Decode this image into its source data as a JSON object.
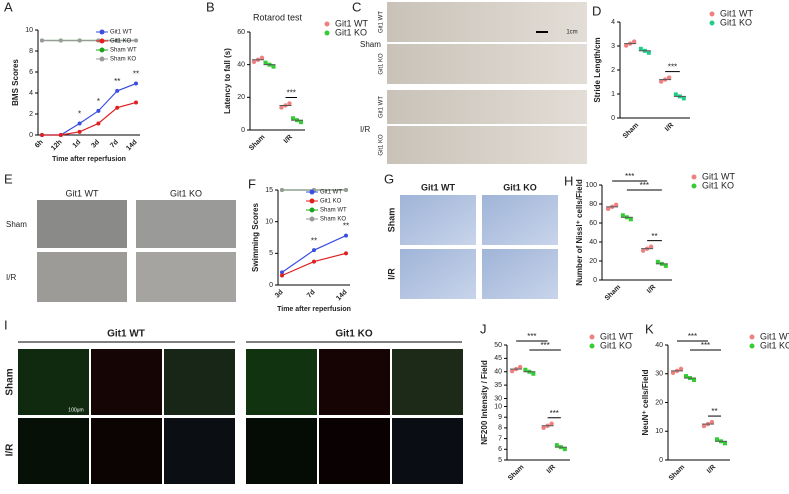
{
  "chart_data": [
    {
      "type": "line",
      "xlabel": "Time after reperfusion",
      "ylabel": "BMS Scores",
      "categories": [
        "6h",
        "12h",
        "1d",
        "3d",
        "7d",
        "14d"
      ],
      "ylim": [
        0,
        10
      ],
      "yticks": [
        0,
        2,
        4,
        6,
        8,
        10
      ],
      "legend": "upper right",
      "series": [
        {
          "name": "Git1 WT",
          "color": "#3a4fe0",
          "values": [
            0,
            0,
            1.1,
            2.3,
            4.2,
            4.9
          ]
        },
        {
          "name": "Git1 KO",
          "color": "#e02020",
          "values": [
            0,
            0,
            0.3,
            1.1,
            2.6,
            3.1
          ]
        },
        {
          "name": "Sham WT",
          "color": "#1fa31f",
          "values": [
            9,
            9,
            9,
            9,
            9,
            9
          ]
        },
        {
          "name": "Sham KO",
          "color": "#9a9a9a",
          "values": [
            9,
            9,
            9,
            9,
            9,
            9
          ]
        }
      ],
      "annotations": [
        "*",
        "*",
        "**",
        "**"
      ]
    },
    {
      "type": "dot",
      "title": "Rotarod test",
      "ylabel": "Latency to fall (s)",
      "categories": [
        "Sham",
        "I/R"
      ],
      "ylim": [
        0,
        60
      ],
      "yticks": [
        0,
        20,
        40,
        60
      ],
      "legend": "outside right",
      "series": [
        {
          "name": "Git1 WT",
          "color": "#f08080",
          "values": [
            43,
            15
          ]
        },
        {
          "name": "Git1 KO",
          "color": "#33cc33",
          "values": [
            40,
            6
          ]
        }
      ],
      "annotations": [
        "***"
      ]
    },
    {
      "type": "dot",
      "ylabel": "Stride Length/cm",
      "categories": [
        "Sham",
        "I/R"
      ],
      "ylim": [
        0,
        4
      ],
      "yticks": [
        0,
        1,
        2,
        3,
        4
      ],
      "legend": "outside right",
      "series": [
        {
          "name": "Git1 WT",
          "color": "#f08080",
          "values": [
            3.1,
            1.6
          ]
        },
        {
          "name": "Git1 KO",
          "color": "#22cc88",
          "values": [
            2.8,
            0.9
          ]
        }
      ],
      "annotations": [
        "***"
      ]
    },
    {
      "type": "line",
      "xlabel": "Time after reperfusion",
      "ylabel": "Swimming Scores",
      "categories": [
        "3d",
        "7d",
        "14d"
      ],
      "ylim": [
        0,
        15
      ],
      "yticks": [
        0,
        5,
        10,
        15
      ],
      "legend": "upper right",
      "series": [
        {
          "name": "Git1 WT",
          "color": "#3a4fe0",
          "values": [
            2,
            5.5,
            7.8
          ]
        },
        {
          "name": "Git1 KO",
          "color": "#e02020",
          "values": [
            1.5,
            3.7,
            5
          ]
        },
        {
          "name": "Sham WT",
          "color": "#1fa31f",
          "values": [
            15,
            15,
            15
          ]
        },
        {
          "name": "Sham KO",
          "color": "#9a9a9a",
          "values": [
            15,
            15,
            15
          ]
        }
      ],
      "annotations": [
        "**",
        "**"
      ]
    },
    {
      "type": "dot",
      "ylabel": "Number of Nissl⁺ cells/Field",
      "categories": [
        "Sham",
        "I/R"
      ],
      "ylim": [
        0,
        100
      ],
      "yticks": [
        0,
        20,
        40,
        60,
        80,
        100
      ],
      "legend": "outside right",
      "series": [
        {
          "name": "Git1 WT",
          "color": "#f08080",
          "values": [
            77,
            33
          ]
        },
        {
          "name": "Git1 KO",
          "color": "#33cc33",
          "values": [
            66,
            17
          ]
        }
      ],
      "annotations": [
        "***",
        "***",
        "**"
      ]
    },
    {
      "type": "dot",
      "ylabel": "NF200 Intensity / Field",
      "categories": [
        "Sham",
        "I/R"
      ],
      "ylim": [
        5,
        50
      ],
      "ybreak": [
        10,
        30
      ],
      "yticks": [
        5,
        6,
        7,
        8,
        9,
        10,
        30,
        35,
        40,
        45,
        50
      ],
      "legend": "outside right",
      "series": [
        {
          "name": "Git1 WT",
          "color": "#f08080",
          "values": [
            41,
            8.2
          ]
        },
        {
          "name": "Git1 KO",
          "color": "#33cc33",
          "values": [
            40,
            6.2
          ]
        }
      ],
      "annotations": [
        "***",
        "***",
        "***"
      ]
    },
    {
      "type": "dot",
      "ylabel": "NeuN⁺ cells/Field",
      "categories": [
        "Sham",
        "I/R"
      ],
      "ylim": [
        0,
        40
      ],
      "yticks": [
        0,
        10,
        20,
        30,
        40
      ],
      "legend": "outside right",
      "series": [
        {
          "name": "Git1 WT",
          "color": "#f08080",
          "values": [
            31,
            12.5
          ]
        },
        {
          "name": "Git1 KO",
          "color": "#33cc33",
          "values": [
            28.5,
            6.5
          ]
        }
      ],
      "annotations": [
        "***",
        "***",
        "**"
      ]
    }
  ],
  "figure": {
    "panels": [
      "A",
      "B",
      "C",
      "D",
      "E",
      "F",
      "G",
      "H",
      "I",
      "J",
      "K"
    ],
    "c": {
      "rows": [
        "Sham",
        "I/R"
      ],
      "cols": [
        "Git1 WT",
        "Git1 KO"
      ],
      "scale": "1cm"
    },
    "e": {
      "cols": [
        "Git1 WT",
        "Git1 KO"
      ],
      "rows": [
        "Sham",
        "I/R"
      ]
    },
    "g": {
      "cols": [
        "Git1 WT",
        "Git1 KO"
      ],
      "rows": [
        "Sham",
        "I/R"
      ]
    },
    "i": {
      "cols": [
        "Git1 WT",
        "Git1 KO"
      ],
      "rows": [
        "Sham",
        "I/R"
      ],
      "scale": "100μm"
    }
  }
}
